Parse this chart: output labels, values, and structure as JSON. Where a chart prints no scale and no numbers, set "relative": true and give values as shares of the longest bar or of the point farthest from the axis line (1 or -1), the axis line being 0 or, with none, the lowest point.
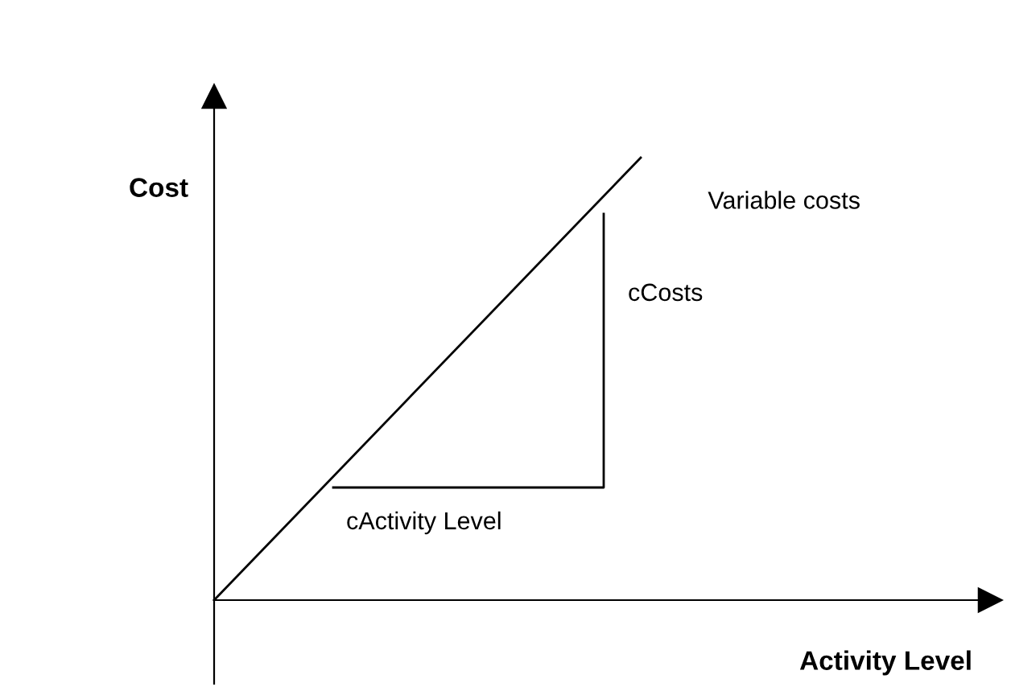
{
  "chart_data": {
    "type": "line",
    "relative": true,
    "categories": [
      null,
      null
    ],
    "series": [
      {
        "name": "Variable costs",
        "color": "#000000",
        "values": [
          0,
          1
        ]
      }
    ],
    "xlabel": "Activity Level",
    "ylabel": "Cost",
    "annotations": [
      "cCosts",
      "cActivity Level"
    ],
    "marker": "none",
    "line_style": "solid",
    "legend": false
  }
}
